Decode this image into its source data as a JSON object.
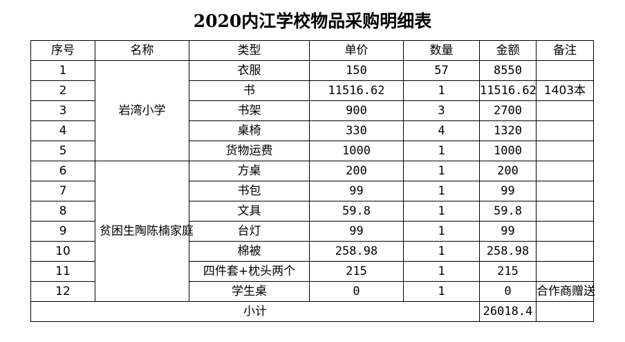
{
  "title": "2020内江学校物品采购明细表",
  "columns": [
    "序号",
    "名称",
    "类型",
    "单价",
    "数量",
    "金额",
    "备注"
  ],
  "groups": [
    {
      "name": "岩湾小学",
      "rows": [
        {
          "no": "1",
          "type": "衣服",
          "price": "150",
          "qty": "57",
          "amount": "8550",
          "note": ""
        },
        {
          "no": "2",
          "type": "书",
          "price": "11516.62",
          "qty": "1",
          "amount": "11516.62",
          "note": "1403本"
        },
        {
          "no": "3",
          "type": "书架",
          "price": "900",
          "qty": "3",
          "amount": "2700",
          "note": ""
        },
        {
          "no": "4",
          "type": "桌椅",
          "price": "330",
          "qty": "4",
          "amount": "1320",
          "note": ""
        },
        {
          "no": "5",
          "type": "货物运费",
          "price": "1000",
          "qty": "1",
          "amount": "1000",
          "note": ""
        }
      ]
    },
    {
      "name": "贫困生陶陈楠家庭",
      "rows": [
        {
          "no": "6",
          "type": "方桌",
          "price": "200",
          "qty": "1",
          "amount": "200",
          "note": ""
        },
        {
          "no": "7",
          "type": "书包",
          "price": "99",
          "qty": "1",
          "amount": "99",
          "note": ""
        },
        {
          "no": "8",
          "type": "文具",
          "price": "59.8",
          "qty": "1",
          "amount": "59.8",
          "note": ""
        },
        {
          "no": "9",
          "type": "台灯",
          "price": "99",
          "qty": "1",
          "amount": "99",
          "note": ""
        },
        {
          "no": "10",
          "type": "棉被",
          "price": "258.98",
          "qty": "1",
          "amount": "258.98",
          "note": ""
        },
        {
          "no": "11",
          "type": "四件套+枕头两个",
          "price": "215",
          "qty": "1",
          "amount": "215",
          "note": ""
        },
        {
          "no": "12",
          "type": "学生桌",
          "price": "0",
          "qty": "1",
          "amount": "0",
          "note": "合作商赠送"
        }
      ]
    }
  ],
  "subtotal": {
    "label": "小计",
    "value": "26018.4"
  }
}
